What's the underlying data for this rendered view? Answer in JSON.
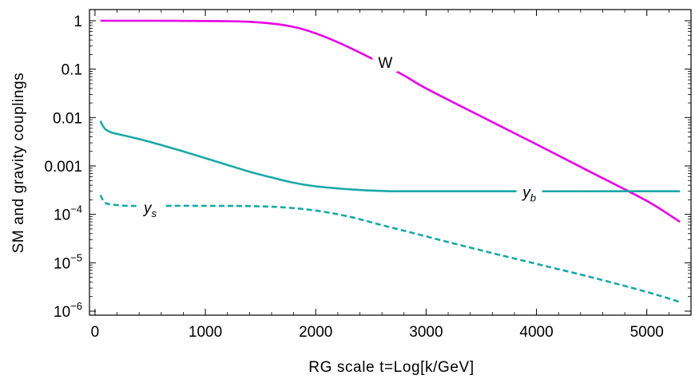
{
  "chart_data": {
    "type": "line",
    "xlabel": "RG scale t=Log[k/GeV]",
    "ylabel": "SM and gravity couplings",
    "xlim": [
      -50,
      5400
    ],
    "ylim": [
      1e-06,
      2
    ],
    "y_scale": "log",
    "grid": false,
    "x_ticks": [
      {
        "value": 0,
        "label": "0"
      },
      {
        "value": 1000,
        "label": "1000"
      },
      {
        "value": 2000,
        "label": "2000"
      },
      {
        "value": 3000,
        "label": "3000"
      },
      {
        "value": 4000,
        "label": "4000"
      },
      {
        "value": 5000,
        "label": "5000"
      }
    ],
    "y_ticks": [
      {
        "value": 1,
        "base": "1",
        "exp": ""
      },
      {
        "value": 0.1,
        "base": "0.1",
        "exp": ""
      },
      {
        "value": 0.01,
        "base": "0.01",
        "exp": ""
      },
      {
        "value": 0.001,
        "base": "0.001",
        "exp": ""
      },
      {
        "value": 0.0001,
        "base": "10",
        "exp": "−4"
      },
      {
        "value": 1e-05,
        "base": "10",
        "exp": "−5"
      },
      {
        "value": 1e-06,
        "base": "10",
        "exp": "−6"
      }
    ],
    "series": [
      {
        "name": "W",
        "color": "#e600e6",
        "dash": "solid",
        "label_at": [
          2630,
          0.14
        ],
        "points": [
          [
            50,
            1.0
          ],
          [
            500,
            1.0
          ],
          [
            1000,
            0.99
          ],
          [
            1300,
            0.97
          ],
          [
            1500,
            0.92
          ],
          [
            1700,
            0.82
          ],
          [
            1850,
            0.7
          ],
          [
            2000,
            0.55
          ],
          [
            2200,
            0.36
          ],
          [
            2400,
            0.22
          ],
          [
            2600,
            0.13
          ],
          [
            2800,
            0.074
          ],
          [
            3000,
            0.04
          ],
          [
            3500,
            0.0105
          ],
          [
            4000,
            0.0028
          ],
          [
            4500,
            0.00073
          ],
          [
            5000,
            0.00019
          ],
          [
            5300,
            7e-05
          ]
        ]
      },
      {
        "name": "y_b",
        "color": "#1aa8a8",
        "dash": "solid",
        "label_at": [
          3935,
          0.00029
        ],
        "points": [
          [
            50,
            0.0085
          ],
          [
            70,
            0.0068
          ],
          [
            100,
            0.0056
          ],
          [
            150,
            0.0049
          ],
          [
            200,
            0.0046
          ],
          [
            400,
            0.0036
          ],
          [
            600,
            0.0027
          ],
          [
            800,
            0.002
          ],
          [
            1000,
            0.00145
          ],
          [
            1200,
            0.00105
          ],
          [
            1400,
            0.00076
          ],
          [
            1600,
            0.00058
          ],
          [
            1800,
            0.00045
          ],
          [
            2000,
            0.00038
          ],
          [
            2300,
            0.00033
          ],
          [
            2600,
            0.000305
          ],
          [
            3000,
            0.0003
          ],
          [
            5300,
            0.0003
          ]
        ]
      },
      {
        "name": "y_s",
        "color": "#1aa8a8",
        "dash": "dashed",
        "label_at": [
          500,
          0.00014
        ],
        "points": [
          [
            50,
            0.00025
          ],
          [
            70,
            0.0002
          ],
          [
            100,
            0.00017
          ],
          [
            150,
            0.00016
          ],
          [
            300,
            0.00015
          ],
          [
            600,
            0.00015
          ],
          [
            1000,
            0.00015
          ],
          [
            1400,
            0.000148
          ],
          [
            1700,
            0.00014
          ],
          [
            2000,
            0.00012
          ],
          [
            2300,
            9e-05
          ],
          [
            2600,
            6e-05
          ],
          [
            3000,
            3.5e-05
          ],
          [
            3500,
            1.8e-05
          ],
          [
            4000,
            9.5e-06
          ],
          [
            4500,
            5e-06
          ],
          [
            5000,
            2.5e-06
          ],
          [
            5300,
            1.55e-06
          ]
        ]
      }
    ]
  }
}
